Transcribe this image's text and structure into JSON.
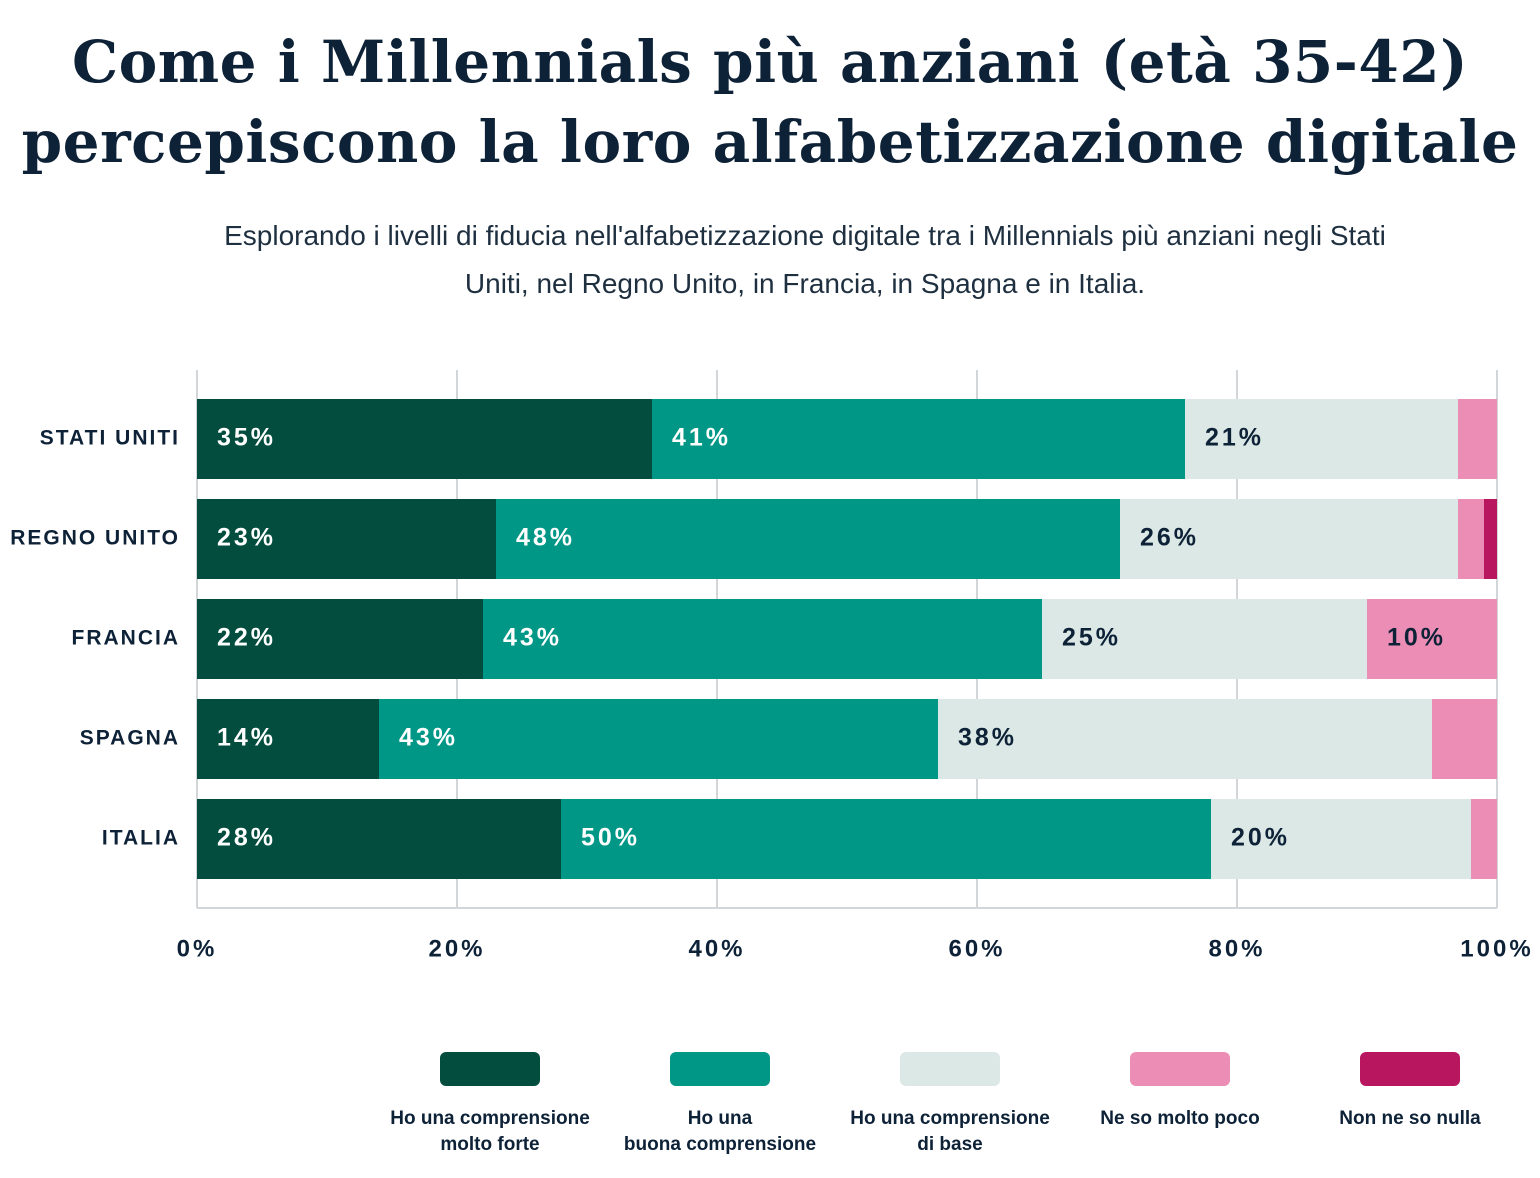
{
  "chart_data": {
    "type": "stacked-bar-horizontal",
    "title": "Come i Millennials più anziani (età 35-42) percepiscono la loro alfabetizzazione digitale",
    "subtitle": "Esplorando i livelli di fiducia nell'alfabetizzazione digitale tra i Millennials più anziani negli Stati Uniti, nel Regno Unito, in Francia, in Spagna e in Italia.",
    "categories": [
      "STATI UNITI",
      "REGNO UNITO",
      "FRANCIA",
      "SPAGNA",
      "ITALIA"
    ],
    "series": [
      {
        "name": "Ho una comprensione molto forte",
        "color": "#034d3f",
        "values": [
          35,
          23,
          22,
          14,
          28
        ],
        "value_labels": [
          "35%",
          "23%",
          "22%",
          "14%",
          "28%"
        ]
      },
      {
        "name": "Ho una buona comprensione",
        "color": "#019786",
        "values": [
          41,
          48,
          43,
          43,
          50
        ],
        "value_labels": [
          "41%",
          "48%",
          "43%",
          "43%",
          "50%"
        ]
      },
      {
        "name": "Ho una comprensione di base",
        "color": "#dbe8e6",
        "values": [
          21,
          26,
          25,
          38,
          20
        ],
        "value_labels": [
          "21%",
          "26%",
          "25%",
          "38%",
          "20%"
        ]
      },
      {
        "name": "Ne so molto poco",
        "color": "#ec8db5",
        "values": [
          3,
          2,
          10,
          5,
          2
        ],
        "value_labels": [
          null,
          null,
          "10%",
          null,
          null
        ]
      },
      {
        "name": "Non ne so nulla",
        "color": "#b8175f",
        "values": [
          0,
          1,
          0,
          0,
          0
        ],
        "value_labels": [
          null,
          null,
          null,
          null,
          null
        ]
      }
    ],
    "xlim": [
      0,
      100
    ],
    "xticks": [
      {
        "value": 0,
        "label": "0%"
      },
      {
        "value": 20,
        "label": "20%"
      },
      {
        "value": 40,
        "label": "40%"
      },
      {
        "value": 60,
        "label": "60%"
      },
      {
        "value": 80,
        "label": "80%"
      },
      {
        "value": 100,
        "label": "100%"
      }
    ],
    "grid": true,
    "legend": "bottom"
  }
}
